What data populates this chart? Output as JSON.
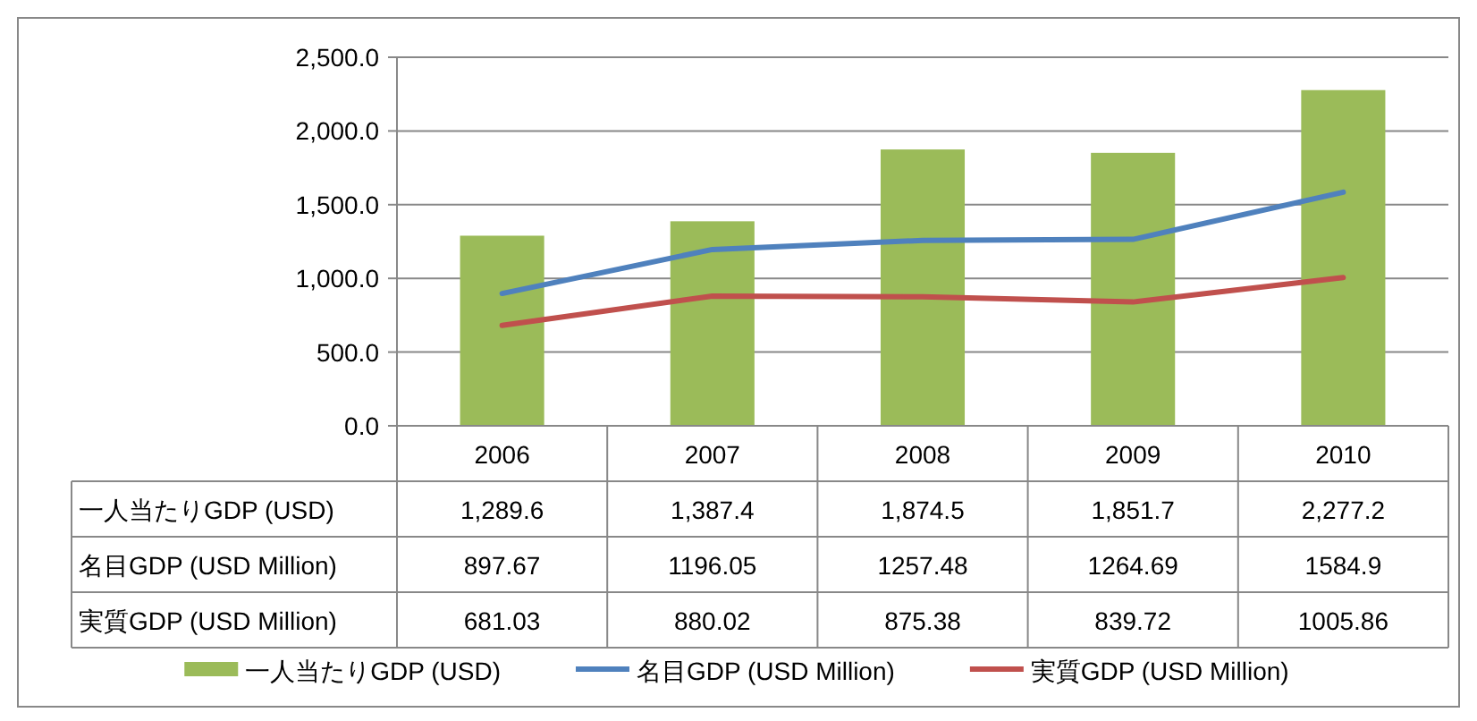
{
  "chart_data": {
    "type": "bar",
    "categories": [
      "2006",
      "2007",
      "2008",
      "2009",
      "2010"
    ],
    "series": [
      {
        "name": "一人当たりGDP (USD)",
        "color": "#9bbb59",
        "values": [
          1289.6,
          1387.4,
          1874.5,
          1851.7,
          2277.2
        ],
        "value_labels": [
          "1,289.6",
          "1,387.4",
          "1,874.5",
          "1,851.7",
          "2,277.2"
        ]
      },
      {
        "name": "名目GDP (USD Million)",
        "type": "line",
        "color": "#4f81bd",
        "values": [
          897.67,
          1196.05,
          1257.48,
          1264.69,
          1584.9
        ],
        "value_labels": [
          "897.67",
          "1196.05",
          "1257.48",
          "1264.69",
          "1584.9"
        ]
      },
      {
        "name": "実質GDP (USD Million)",
        "type": "line",
        "color": "#c0504d",
        "values": [
          681.03,
          880.02,
          875.38,
          839.72,
          1005.86
        ],
        "value_labels": [
          "681.03",
          "880.02",
          "875.38",
          "839.72",
          "1005.86"
        ]
      }
    ],
    "ylim": [
      0,
      2500
    ],
    "yticks": [
      {
        "value": 0,
        "label": "0.0"
      },
      {
        "value": 500,
        "label": "500.0"
      },
      {
        "value": 1000,
        "label": "1,000.0"
      },
      {
        "value": 1500,
        "label": "1,500.0"
      },
      {
        "value": 2000,
        "label": "2,000.0"
      },
      {
        "value": 2500,
        "label": "2,500.0"
      }
    ],
    "grid": "y",
    "legend": "bottom"
  }
}
